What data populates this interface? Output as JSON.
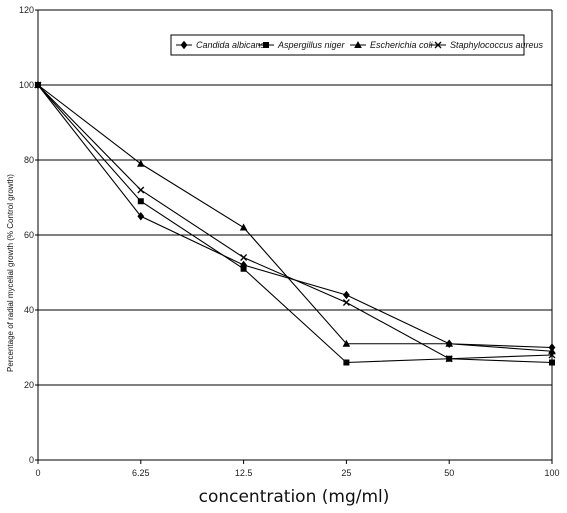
{
  "chart_data": {
    "type": "line",
    "categories": [
      "0",
      "6.25",
      "12.5",
      "25",
      "50",
      "100"
    ],
    "xlabel": "concentration (mg/ml)",
    "ylabel": "Percentage of radial mycelial growth (% Control growth)",
    "ylim": [
      0,
      120
    ],
    "yticks": [
      0,
      20,
      40,
      60,
      80,
      100,
      120
    ],
    "grid": true,
    "legend_placement": "top-right",
    "series": [
      {
        "name": "Candida albicans",
        "marker": "diamond",
        "values": [
          100,
          65,
          52,
          44,
          31,
          30
        ]
      },
      {
        "name": "Aspergillus niger",
        "marker": "square",
        "values": [
          100,
          69,
          51,
          26,
          27,
          26
        ]
      },
      {
        "name": "Escherichia coli",
        "marker": "triangle",
        "values": [
          100,
          79,
          62,
          31,
          31,
          29
        ]
      },
      {
        "name": "Staphylococcus aureus",
        "marker": "x",
        "values": [
          100,
          72,
          54,
          42,
          27,
          28
        ]
      }
    ]
  }
}
